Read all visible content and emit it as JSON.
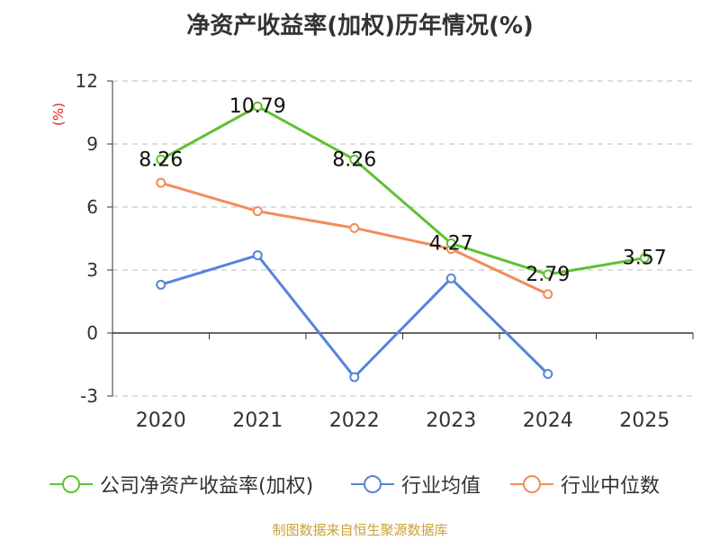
{
  "chart_data": {
    "type": "line",
    "title": "净资产收益率(加权)历年情况(%)",
    "ylabel": "(%)",
    "categories": [
      "2020",
      "2021",
      "2022",
      "2023",
      "2024",
      "2025"
    ],
    "ylim": [
      -3,
      12
    ],
    "yticks": [
      -3,
      0,
      3,
      6,
      9,
      12
    ],
    "grid": true,
    "legend_position": "bottom",
    "series": [
      {
        "name": "公司净资产收益率(加权)",
        "color": "#5fc132",
        "values": [
          8.26,
          10.79,
          8.26,
          4.27,
          2.79,
          3.57
        ],
        "labels": [
          "8.26",
          "10.79",
          "8.26",
          "4.27",
          "2.79",
          "3.57"
        ]
      },
      {
        "name": "行业均值",
        "color": "#5684db",
        "values": [
          2.3,
          3.7,
          -2.1,
          2.6,
          -1.95,
          null
        ]
      },
      {
        "name": "行业中位数",
        "color": "#f28c5a",
        "values": [
          7.15,
          5.8,
          5.0,
          4.0,
          1.85,
          null
        ]
      }
    ]
  },
  "source": "制图数据来自恒生聚源数据库"
}
